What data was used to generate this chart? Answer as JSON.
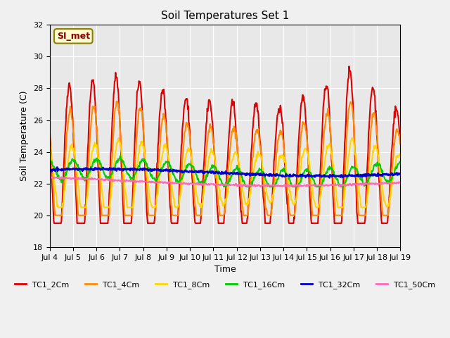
{
  "title": "Soil Temperatures Set 1",
  "xlabel": "Time",
  "ylabel": "Soil Temperature (C)",
  "ylim": [
    18,
    32
  ],
  "xlim": [
    0,
    15
  ],
  "annotation": "SI_met",
  "annotation_color": "#8B0000",
  "annotation_bg": "#FFFACD",
  "background_color": "#E8E8E8",
  "fig_bg": "#F0F0F0",
  "series": {
    "TC1_2Cm": {
      "color": "#DD0000",
      "lw": 1.5
    },
    "TC1_4Cm": {
      "color": "#FF8C00",
      "lw": 1.5
    },
    "TC1_8Cm": {
      "color": "#FFD700",
      "lw": 1.5
    },
    "TC1_16Cm": {
      "color": "#00CC00",
      "lw": 1.5
    },
    "TC1_32Cm": {
      "color": "#0000CC",
      "lw": 1.8
    },
    "TC1_50Cm": {
      "color": "#FF69B4",
      "lw": 1.5
    }
  },
  "xtick_labels": [
    "Jul 4",
    "Jul 5",
    "Jul 6",
    "Jul 7",
    "Jul 8",
    "Jul 9",
    "Jul 10",
    "Jul 11",
    "Jul 12",
    "Jul 13",
    "Jul 14",
    "Jul 15",
    "Jul 16",
    "Jul 17",
    "Jul 18",
    "Jul 19"
  ],
  "ytick_values": [
    18,
    20,
    22,
    24,
    26,
    28,
    30,
    32
  ]
}
